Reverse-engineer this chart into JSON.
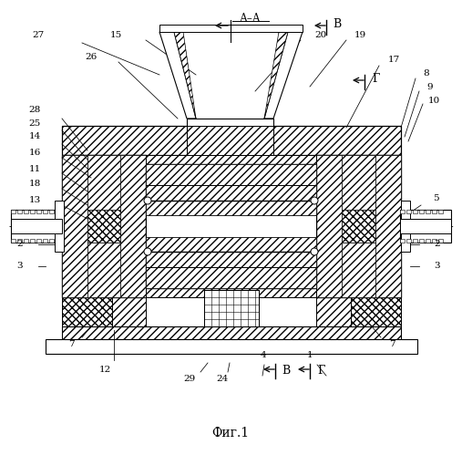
{
  "title": "Фиг.1",
  "bg_color": "#ffffff",
  "line_color": "#000000",
  "AA_label": "А–А",
  "B_label": "В",
  "G_label": "Г",
  "fig_caption": "Фиг.1"
}
